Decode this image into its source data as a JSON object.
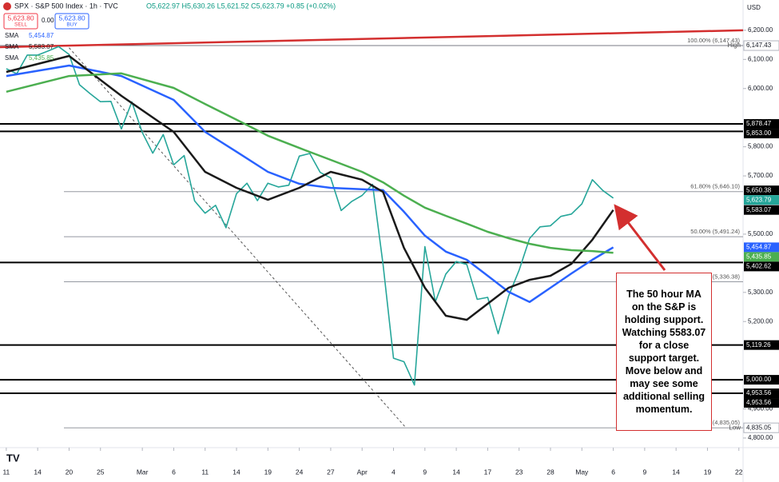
{
  "header": {
    "symbol": "SPX · S&P 500 Index · 1h · TVC",
    "ohlc": "O5,622.97 H5,630.26 L5,621.52 C5,623.79 +0.85 (+0.02%)",
    "sell_price": "5,623.80",
    "sell": "SELL",
    "spread": "0.00",
    "buy_price": "5,623.80",
    "buy": "BUY",
    "currency": "USD"
  },
  "chart_data": {
    "type": "line",
    "annotation": "The 50 hour MA on the S&P is holding support. Watching 5583.07 for a close support target.  Move below and may see some additional selling momentum.",
    "xlim": [
      -0.6,
      70.4
    ],
    "xticks": [
      {
        "value": 0,
        "label": "11"
      },
      {
        "value": 3,
        "label": "14"
      },
      {
        "value": 6,
        "label": "20"
      },
      {
        "value": 9,
        "label": "25"
      },
      {
        "value": 13,
        "label": "Mar"
      },
      {
        "value": 16,
        "label": "6"
      },
      {
        "value": 19,
        "label": "11"
      },
      {
        "value": 22,
        "label": "14"
      },
      {
        "value": 25,
        "label": "19"
      },
      {
        "value": 28,
        "label": "24"
      },
      {
        "value": 31,
        "label": "27"
      },
      {
        "value": 34,
        "label": "Apr"
      },
      {
        "value": 37,
        "label": "4"
      },
      {
        "value": 40,
        "label": "9"
      },
      {
        "value": 43,
        "label": "14"
      },
      {
        "value": 46,
        "label": "17"
      },
      {
        "value": 49,
        "label": "23"
      },
      {
        "value": 52,
        "label": "28"
      },
      {
        "value": 55,
        "label": "May"
      },
      {
        "value": 58,
        "label": "6"
      },
      {
        "value": 61,
        "label": "9"
      },
      {
        "value": 64,
        "label": "14"
      },
      {
        "value": 67,
        "label": "19"
      },
      {
        "value": 70,
        "label": "22"
      }
    ],
    "ylim": [
      4767,
      6304
    ],
    "yticks": [
      {
        "value": 6200,
        "label": "6,200.00"
      },
      {
        "value": 6100,
        "label": "6,100.00"
      },
      {
        "value": 6000,
        "label": "6,000.00"
      },
      {
        "value": 5800,
        "label": "5,800.00"
      },
      {
        "value": 5700,
        "label": "5,700.00"
      },
      {
        "value": 5500,
        "label": "5,500.00"
      },
      {
        "value": 5300,
        "label": "5,300.00"
      },
      {
        "value": 5200,
        "label": "5,200.00"
      },
      {
        "value": 4900,
        "label": "4,900.00"
      },
      {
        "value": 4800,
        "label": "4,800.00"
      }
    ],
    "grid": false,
    "series": [
      {
        "color": "#26a69a",
        "x": [
          0,
          1,
          2,
          3,
          4,
          5,
          6,
          7,
          8,
          9,
          10,
          11,
          12,
          13,
          14,
          15,
          16,
          17,
          18,
          19,
          20,
          21,
          22,
          23,
          24,
          25,
          26,
          27,
          28,
          29,
          30,
          31,
          32,
          33,
          34,
          35,
          36,
          37,
          38,
          39,
          40,
          41,
          42,
          43,
          44,
          45,
          46,
          47,
          48,
          49,
          50,
          51,
          52,
          53,
          54,
          55,
          56,
          57,
          58
        ],
        "values": [
          6068,
          6051,
          6115,
          6115,
          6129,
          6144,
          6117,
          6013,
          5983,
          5955,
          5956,
          5861,
          5954,
          5849,
          5778,
          5842,
          5738,
          5770,
          5614,
          5572,
          5599,
          5522,
          5639,
          5675,
          5615,
          5675,
          5662,
          5668,
          5768,
          5777,
          5712,
          5693,
          5581,
          5612,
          5633,
          5671,
          5397,
          5074,
          5062,
          4982,
          5457,
          5268,
          5363,
          5406,
          5396,
          5276,
          5283,
          5158,
          5288,
          5376,
          5485,
          5525,
          5529,
          5561,
          5569,
          5604,
          5687,
          5650,
          5623.79
        ]
      },
      {
        "name": "SMA",
        "legend_value": "5,454.87",
        "color": "#2962ff",
        "x": [
          0,
          6,
          11,
          16,
          19,
          22,
          25,
          28,
          31,
          34,
          36,
          38,
          40,
          42,
          44,
          46,
          48,
          50,
          52,
          54,
          56,
          58
        ],
        "values": [
          6043,
          6079,
          6043,
          5961,
          5851,
          5783,
          5714,
          5673,
          5659,
          5654,
          5651,
          5577,
          5495,
          5440,
          5412,
          5357,
          5302,
          5267,
          5316,
          5365,
          5412,
          5454.87
        ]
      },
      {
        "name": "SMA",
        "legend_value": "5,583.07",
        "color": "#1a1a1a",
        "x": [
          0,
          6,
          11,
          16,
          19,
          22,
          25,
          28,
          31,
          34,
          36,
          38,
          40,
          42,
          44,
          46,
          48,
          50,
          52,
          54,
          56,
          58
        ],
        "values": [
          6057,
          6112,
          5975,
          5851,
          5714,
          5659,
          5618,
          5659,
          5714,
          5687,
          5645,
          5453,
          5316,
          5220,
          5206,
          5261,
          5316,
          5343,
          5357,
          5398,
          5481,
          5583.07
        ]
      },
      {
        "name": "SMA",
        "legend_value": "5,435.85",
        "color": "#4caf50",
        "x": [
          0,
          6,
          11,
          16,
          19,
          22,
          25,
          28,
          31,
          34,
          36,
          38,
          40,
          42,
          44,
          46,
          48,
          50,
          52,
          54,
          56,
          58
        ],
        "values": [
          5989,
          6043,
          6052,
          6002,
          5947,
          5893,
          5838,
          5796,
          5755,
          5714,
          5678,
          5632,
          5591,
          5563,
          5536,
          5508,
          5486,
          5467,
          5453,
          5445,
          5442,
          5435.85
        ]
      }
    ],
    "trendlines": [
      {
        "color": "#d32f2f",
        "dashed": false,
        "x": [
          -0.6,
          70.4
        ],
        "y": [
          6142,
          6200
        ]
      },
      {
        "color": "#555555",
        "dashed": true,
        "x": [
          6,
          38.2
        ],
        "y": [
          6140,
          4835
        ]
      }
    ],
    "fib_levels": [
      {
        "value": 6147.43,
        "label": "100.00% (6,147.43)"
      },
      {
        "value": 5646.1,
        "label": "61.80% (5,646.10)"
      },
      {
        "value": 5491.24,
        "label": "50.00% (5,491.24)"
      },
      {
        "value": 5336.38,
        "label": "(5,336.38)"
      },
      {
        "value": 4835.05,
        "label": "(4,835.05)"
      }
    ],
    "levels": [
      {
        "value": 6147.43,
        "label": "6,147.43",
        "tag": "High",
        "color": "#ffffff",
        "line": true
      },
      {
        "value": 5878.47,
        "label": "5,878.47",
        "color": "#000000",
        "line": true
      },
      {
        "value": 5853.0,
        "label": "5,853.00",
        "color": "#000000",
        "line": true
      },
      {
        "value": 5650.38,
        "label": "5,650.38",
        "color": "#000000",
        "line": false
      },
      {
        "value": 5623.79,
        "label": "5,623.79",
        "color": "#26a69a",
        "line": false
      },
      {
        "value": 5583.07,
        "label": "5,583.07",
        "color": "#000000",
        "line": false
      },
      {
        "value": 5454.87,
        "label": "5,454.87",
        "color": "#2962ff",
        "line": false
      },
      {
        "value": 5435.85,
        "label": "5,435.85",
        "color": "#4caf50",
        "line": false
      },
      {
        "value": 5402.62,
        "label": "5,402.62",
        "color": "#000000",
        "line": true
      },
      {
        "value": 5119.26,
        "label": "5,119.26",
        "color": "#000000",
        "line": true
      },
      {
        "value": 5000.0,
        "label": "5,000.00",
        "color": "#000000",
        "line": true
      },
      {
        "value": 4953.56,
        "label": "4,953.56",
        "color": "#000000",
        "line": true
      },
      {
        "value": 4953.56,
        "label": "4,953.56",
        "color": "#000000",
        "line": false
      },
      {
        "value": 4835.05,
        "label": "4,835.05",
        "tag": "Low",
        "color": "#ffffff",
        "line": false
      }
    ]
  }
}
